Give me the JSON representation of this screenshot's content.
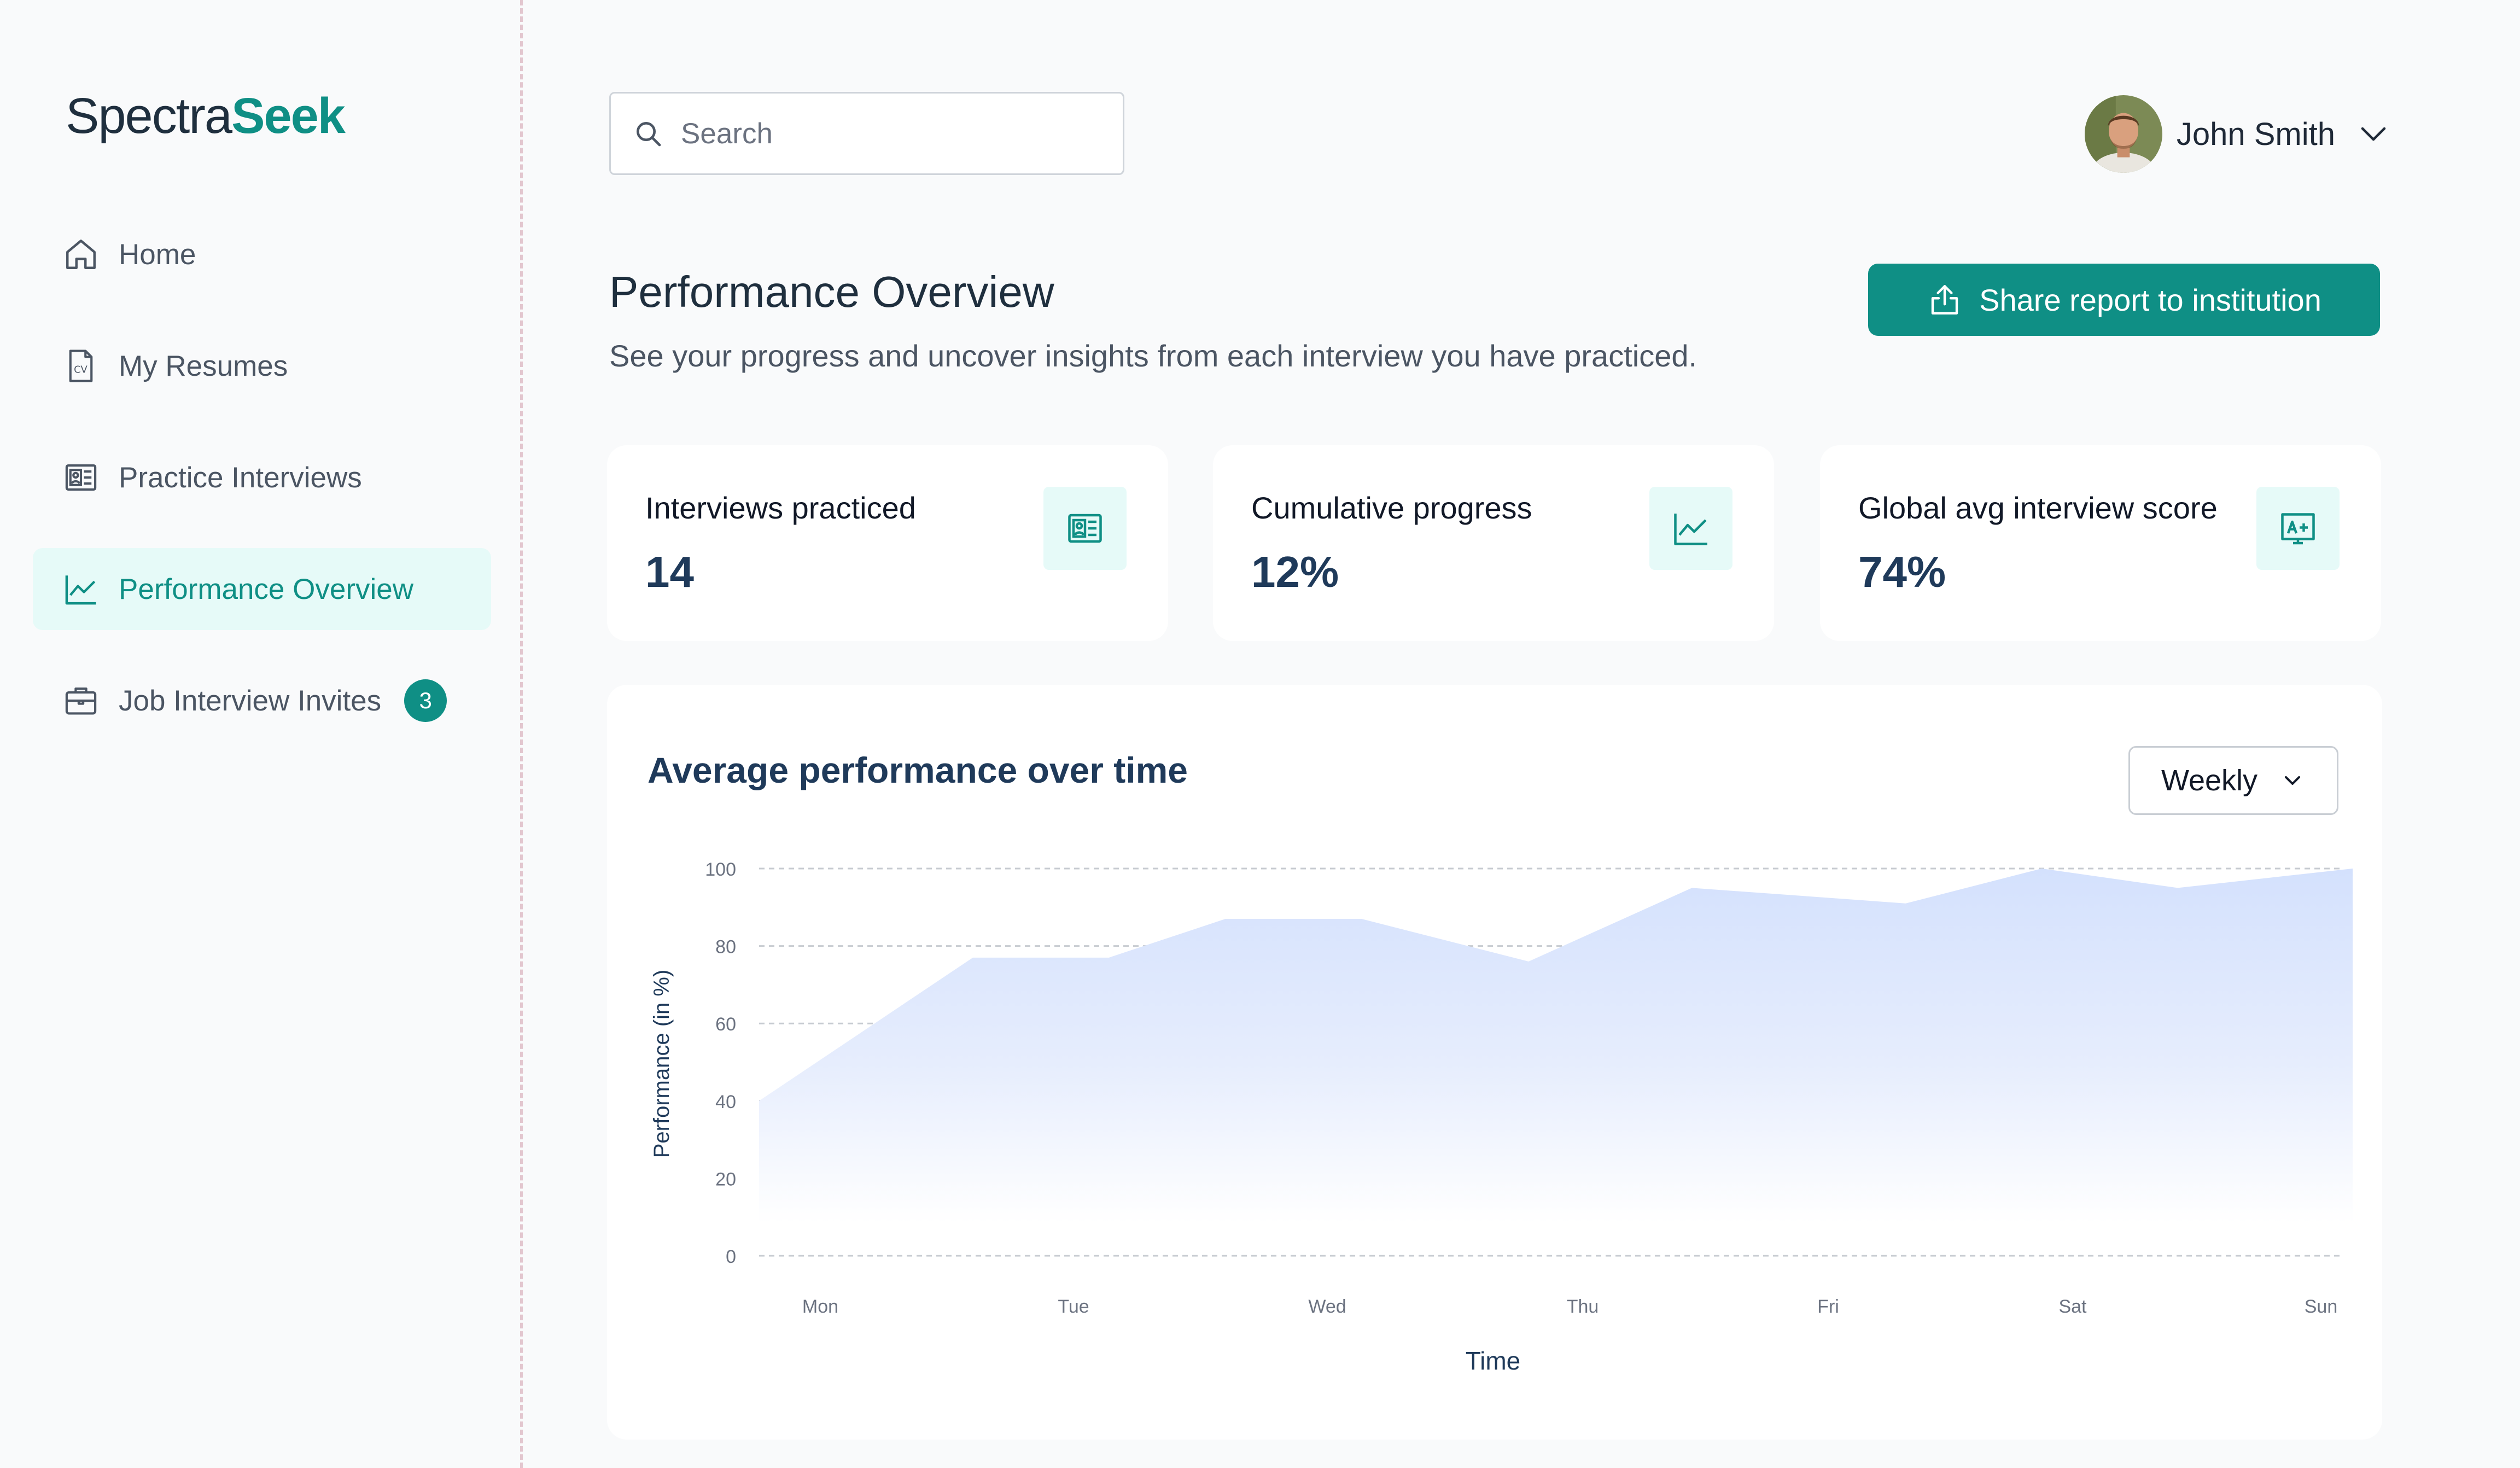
{
  "app": {
    "logo_part1": "Spectra",
    "logo_part2": "Seek"
  },
  "sidebar": {
    "items": [
      {
        "label": "Home",
        "icon": "home-icon",
        "active": false
      },
      {
        "label": "My Resumes",
        "icon": "cv-file-icon",
        "active": false
      },
      {
        "label": "Practice Interviews",
        "icon": "id-card-icon",
        "active": false
      },
      {
        "label": "Performance Overview",
        "icon": "line-chart-icon",
        "active": true
      },
      {
        "label": "Job Interview Invites",
        "icon": "briefcase-icon",
        "active": false,
        "badge": "3"
      }
    ]
  },
  "header": {
    "search_placeholder": "Search",
    "user_name": "John Smith"
  },
  "page": {
    "title": "Performance Overview",
    "subtitle": "See your progress and uncover insights from each interview you have practiced.",
    "share_button": "Share report to institution"
  },
  "stats": [
    {
      "label": "Interviews practiced",
      "value": "14",
      "icon": "id-card-icon"
    },
    {
      "label": "Cumulative progress",
      "value": "12%",
      "icon": "line-chart-icon"
    },
    {
      "label": "Global avg interview score",
      "value": "74%",
      "icon": "grade-a-plus-icon"
    }
  ],
  "chart": {
    "title": "Average performance over time",
    "period_select": "Weekly"
  },
  "colors": {
    "accent": "#0f8f85",
    "accent_light": "#e6faf8",
    "area_fill": "#d4e1fd"
  },
  "chart_data": {
    "type": "area",
    "x_labels": [
      "Mon",
      "Tue",
      "Wed",
      "Thu",
      "Fri",
      "Sat",
      "Sun"
    ],
    "points": [
      {
        "x": 0.0,
        "y": 40
      },
      {
        "x": 0.55,
        "y": 77
      },
      {
        "x": 0.9,
        "y": 77
      },
      {
        "x": 1.2,
        "y": 87
      },
      {
        "x": 1.55,
        "y": 87
      },
      {
        "x": 1.98,
        "y": 76
      },
      {
        "x": 2.4,
        "y": 95
      },
      {
        "x": 2.95,
        "y": 91
      },
      {
        "x": 3.3,
        "y": 100
      },
      {
        "x": 3.65,
        "y": 95
      },
      {
        "x": 4.1,
        "y": 100
      }
    ],
    "x_range": [
      0,
      4.1
    ],
    "ylim": [
      0,
      100
    ],
    "y_ticks": [
      0,
      20,
      40,
      60,
      80,
      100
    ],
    "xlabel": "Time",
    "ylabel": "Performance (in %)",
    "grid": true
  }
}
